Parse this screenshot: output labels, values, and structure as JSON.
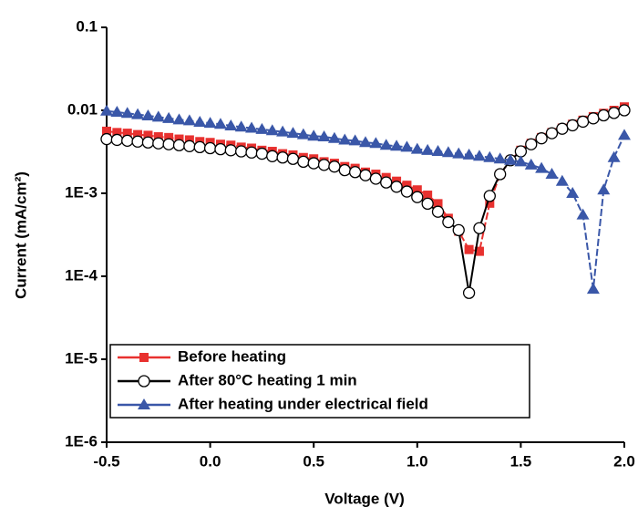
{
  "chart_data": {
    "type": "line",
    "xlabel": "Voltage (V)",
    "ylabel": "Current (mA/cm²)",
    "log_y": true,
    "legend": "lower left",
    "x": [
      -0.5,
      -0.45,
      -0.4,
      -0.35,
      -0.3,
      -0.25,
      -0.2,
      -0.15,
      -0.1,
      -0.05,
      0,
      0.05,
      0.1,
      0.15,
      0.2,
      0.25,
      0.3,
      0.35,
      0.4,
      0.45,
      0.5,
      0.55,
      0.6,
      0.65,
      0.7,
      0.75,
      0.8,
      0.85,
      0.9,
      0.95,
      1.0,
      1.05,
      1.1,
      1.15,
      1.2,
      1.25,
      1.3,
      1.35,
      1.4,
      1.45,
      1.5,
      1.55,
      1.6,
      1.65,
      1.7,
      1.75,
      1.8,
      1.85,
      1.9,
      1.95,
      2.0
    ],
    "series": [
      {
        "name": "Before heating",
        "color": "#e8312f",
        "marker": "square",
        "values": [
          0.0056,
          0.0054,
          0.0053,
          0.0051,
          0.005,
          0.0048,
          0.0047,
          0.0045,
          0.0044,
          0.0042,
          0.0041,
          0.0039,
          0.0038,
          0.0036,
          0.0035,
          0.0033,
          0.0032,
          0.003,
          0.0029,
          0.0027,
          0.0026,
          0.0024,
          0.0023,
          0.0021,
          0.002,
          0.0018,
          0.0017,
          0.00155,
          0.0014,
          0.00125,
          0.0011,
          0.00095,
          0.00075,
          0.0005,
          0.00035,
          0.00021,
          0.0002,
          0.00076,
          0.0017,
          0.0025,
          0.0033,
          0.004,
          0.0047,
          0.0054,
          0.0061,
          0.0068,
          0.0076,
          0.0084,
          0.0092,
          0.01,
          0.011
        ]
      },
      {
        "name": "After 80°C heating 1 min",
        "color": "#000000",
        "marker": "circle",
        "values": [
          0.0045,
          0.0044,
          0.0043,
          0.0042,
          0.0041,
          0.004,
          0.0039,
          0.0038,
          0.0037,
          0.0036,
          0.0035,
          0.0034,
          0.0033,
          0.0032,
          0.0031,
          0.003,
          0.0028,
          0.0027,
          0.0026,
          0.0024,
          0.0023,
          0.0022,
          0.0021,
          0.0019,
          0.0018,
          0.00165,
          0.0015,
          0.00135,
          0.0012,
          0.00105,
          0.0009,
          0.00075,
          0.0006,
          0.00045,
          0.00036,
          6.3e-05,
          0.00038,
          0.00093,
          0.0017,
          0.0025,
          0.0032,
          0.0039,
          0.0046,
          0.0053,
          0.006,
          0.0066,
          0.0073,
          0.008,
          0.0087,
          0.0093,
          0.01
        ]
      },
      {
        "name": "After heating under electrical field",
        "color": "#3a57a8",
        "marker": "triangle",
        "values": [
          0.0098,
          0.0095,
          0.0092,
          0.0089,
          0.0086,
          0.0083,
          0.008,
          0.0077,
          0.0075,
          0.0072,
          0.007,
          0.0068,
          0.0065,
          0.0063,
          0.0061,
          0.0059,
          0.0057,
          0.0055,
          0.0053,
          0.0051,
          0.0049,
          0.0048,
          0.0046,
          0.0044,
          0.0043,
          0.0041,
          0.004,
          0.0038,
          0.0037,
          0.0036,
          0.0034,
          0.0033,
          0.0032,
          0.0031,
          0.003,
          0.0029,
          0.0028,
          0.0027,
          0.0026,
          0.0025,
          0.0024,
          0.0022,
          0.002,
          0.0017,
          0.0014,
          0.001,
          0.00055,
          7e-05,
          0.0011,
          0.0027,
          0.005
        ]
      }
    ],
    "xlim": [
      -0.5,
      2.0
    ],
    "xticks": [
      -0.5,
      {
        "value": 0,
        "label": "0.0"
      },
      0.5,
      {
        "value": 1,
        "label": "1.0"
      },
      1.5,
      {
        "value": 2,
        "label": "2.0"
      }
    ],
    "ylim": [
      1e-06,
      0.1
    ],
    "yticks": [
      {
        "value": 1e-06,
        "label": "1E-6"
      },
      {
        "value": 1e-05,
        "label": "1E-5"
      },
      {
        "value": 0.0001,
        "label": "1E-4"
      },
      {
        "value": 0.001,
        "label": "1E-3"
      },
      0.01,
      0.1
    ]
  }
}
